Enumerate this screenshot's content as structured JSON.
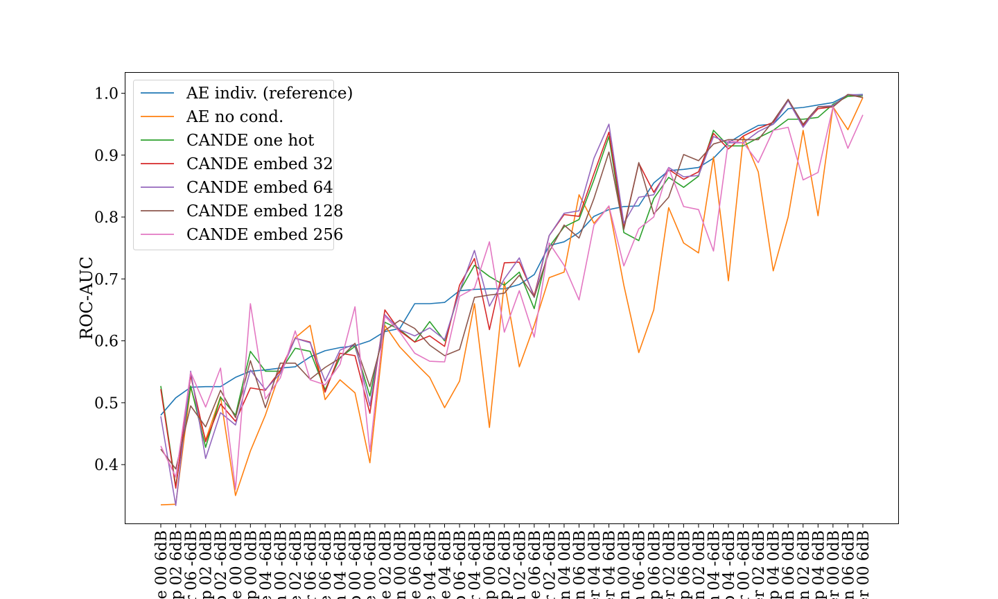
{
  "chart_data": {
    "type": "line",
    "xlabel": "",
    "ylabel": "ROC-AUC",
    "ylim": [
      0.305,
      1.033
    ],
    "yticks": [
      0.4,
      0.5,
      0.6,
      0.7,
      0.8,
      0.9,
      1.0
    ],
    "ytick_labels": [
      "0.4",
      "0.5",
      "0.6",
      "0.7",
      "0.8",
      "0.9",
      "1.0"
    ],
    "grid": false,
    "legend_position": "top-left",
    "x_tick_labels": [
      "ve 00 6dB",
      "mp 02 6dB",
      "er 06 -6dB",
      "mp 02 0dB",
      "mp 02 -6dB",
      "ve 00 0dB",
      "mp 00 0dB",
      "ve 04 -6dB",
      "un 00 -6dB",
      "ve 02 -6dB",
      "der 06 -6dB",
      "ve 06 -6dB",
      "un 04 -6dB",
      "mp 00 -6dB",
      "ve 00 -6dB",
      "ve 02 0dB",
      "an 00 0dB",
      "ve 06 0dB",
      "ve 04 -6dB",
      "ve 04 6dB",
      "mp 06 -6dB",
      "er 04 -6dB",
      "mp 00 6dB",
      "mp 02 6dB",
      "un 02 -6dB",
      "ve 06 6dB",
      "er 02 -6dB",
      "an 04 0dB",
      "an 06 0dB",
      "der 04 0dB",
      "der 04 6dB",
      "an 00 0dB",
      "un 06 -6dB",
      "mp 06 0dB",
      "der 02 0dB",
      "mp 06 0dB",
      "an 02 0dB",
      "an 04 -6dB",
      "mp 04 -6dB",
      "er 00 -6dB",
      "der 02 6dB",
      "mp 04 0dB",
      "an 06 0dB",
      "an 02 6dB",
      "mp 04 6dB",
      "der 00 0dB",
      "an 06 6dB",
      "der 00 6dB"
    ],
    "series": [
      {
        "name": "AE indiv. (reference)",
        "color": "#1f77b4",
        "values": [
          0.48,
          0.508,
          0.525,
          0.526,
          0.526,
          0.541,
          0.551,
          0.553,
          0.556,
          0.558,
          0.574,
          0.584,
          0.589,
          0.592,
          0.6,
          0.615,
          0.62,
          0.66,
          0.66,
          0.662,
          0.681,
          0.683,
          0.684,
          0.684,
          0.691,
          0.707,
          0.754,
          0.76,
          0.775,
          0.801,
          0.812,
          0.817,
          0.818,
          0.855,
          0.875,
          0.877,
          0.88,
          0.895,
          0.92,
          0.935,
          0.948,
          0.95,
          0.975,
          0.977,
          0.981,
          0.985,
          0.997,
          0.998
        ]
      },
      {
        "name": "AE no cond.",
        "color": "#ff7f0e",
        "values": [
          0.335,
          0.336,
          0.525,
          0.44,
          0.51,
          0.35,
          0.422,
          0.48,
          0.55,
          0.605,
          0.625,
          0.505,
          0.537,
          0.516,
          0.403,
          0.625,
          0.59,
          0.565,
          0.541,
          0.492,
          0.535,
          0.66,
          0.46,
          0.695,
          0.558,
          0.625,
          0.702,
          0.711,
          0.836,
          0.79,
          0.817,
          0.69,
          0.581,
          0.65,
          0.815,
          0.758,
          0.742,
          0.897,
          0.697,
          0.93,
          0.873,
          0.713,
          0.8,
          0.94,
          0.802,
          0.978,
          0.941,
          0.993
        ]
      },
      {
        "name": "CANDE one hot",
        "color": "#2ca02c",
        "values": [
          0.527,
          0.365,
          0.527,
          0.428,
          0.509,
          0.48,
          0.583,
          0.551,
          0.551,
          0.588,
          0.583,
          0.521,
          0.573,
          0.591,
          0.511,
          0.63,
          0.618,
          0.598,
          0.631,
          0.6,
          0.68,
          0.722,
          0.704,
          0.69,
          0.711,
          0.652,
          0.752,
          0.784,
          0.796,
          0.86,
          0.93,
          0.775,
          0.762,
          0.83,
          0.864,
          0.848,
          0.866,
          0.94,
          0.915,
          0.915,
          0.928,
          0.94,
          0.958,
          0.958,
          0.961,
          0.982,
          0.995,
          0.996
        ]
      },
      {
        "name": "CANDE embed 32",
        "color": "#d62728",
        "values": [
          0.522,
          0.362,
          0.544,
          0.437,
          0.498,
          0.47,
          0.524,
          0.52,
          0.552,
          0.604,
          0.598,
          0.517,
          0.58,
          0.576,
          0.483,
          0.65,
          0.616,
          0.598,
          0.608,
          0.591,
          0.69,
          0.733,
          0.618,
          0.726,
          0.727,
          0.673,
          0.77,
          0.804,
          0.801,
          0.87,
          0.937,
          0.783,
          0.887,
          0.84,
          0.877,
          0.861,
          0.873,
          0.935,
          0.91,
          0.931,
          0.943,
          0.953,
          0.99,
          0.948,
          0.975,
          0.978,
          0.998,
          0.993
        ]
      },
      {
        "name": "CANDE embed 64",
        "color": "#9467bd",
        "values": [
          0.478,
          0.334,
          0.551,
          0.41,
          0.484,
          0.464,
          0.553,
          0.521,
          0.547,
          0.604,
          0.597,
          0.535,
          0.585,
          0.595,
          0.495,
          0.642,
          0.618,
          0.608,
          0.621,
          0.602,
          0.68,
          0.746,
          0.656,
          0.7,
          0.734,
          0.67,
          0.77,
          0.806,
          0.81,
          0.895,
          0.95,
          0.79,
          0.832,
          0.836,
          0.88,
          0.865,
          0.867,
          0.93,
          0.92,
          0.92,
          0.938,
          0.95,
          0.988,
          0.945,
          0.978,
          0.98,
          0.998,
          0.997
        ]
      },
      {
        "name": "CANDE embed 128",
        "color": "#8c564b",
        "values": [
          0.425,
          0.393,
          0.495,
          0.461,
          0.52,
          0.476,
          0.568,
          0.492,
          0.564,
          0.564,
          0.538,
          0.557,
          0.572,
          0.596,
          0.526,
          0.617,
          0.633,
          0.62,
          0.593,
          0.576,
          0.586,
          0.67,
          0.674,
          0.677,
          0.706,
          0.671,
          0.744,
          0.787,
          0.766,
          0.83,
          0.905,
          0.78,
          0.888,
          0.805,
          0.832,
          0.901,
          0.891,
          0.918,
          0.925,
          0.925,
          0.925,
          0.955,
          0.99,
          0.95,
          0.978,
          0.978,
          0.998,
          0.993
        ]
      },
      {
        "name": "CANDE embed 256",
        "color": "#e377c2",
        "values": [
          0.43,
          0.38,
          0.549,
          0.493,
          0.556,
          0.36,
          0.66,
          0.506,
          0.54,
          0.616,
          0.537,
          0.529,
          0.562,
          0.655,
          0.421,
          0.64,
          0.614,
          0.58,
          0.567,
          0.566,
          0.672,
          0.685,
          0.76,
          0.614,
          0.681,
          0.606,
          0.758,
          0.722,
          0.666,
          0.787,
          0.818,
          0.721,
          0.781,
          0.8,
          0.879,
          0.817,
          0.812,
          0.745,
          0.923,
          0.92,
          0.888,
          0.94,
          0.945,
          0.86,
          0.872,
          0.978,
          0.911,
          0.965
        ]
      }
    ]
  }
}
